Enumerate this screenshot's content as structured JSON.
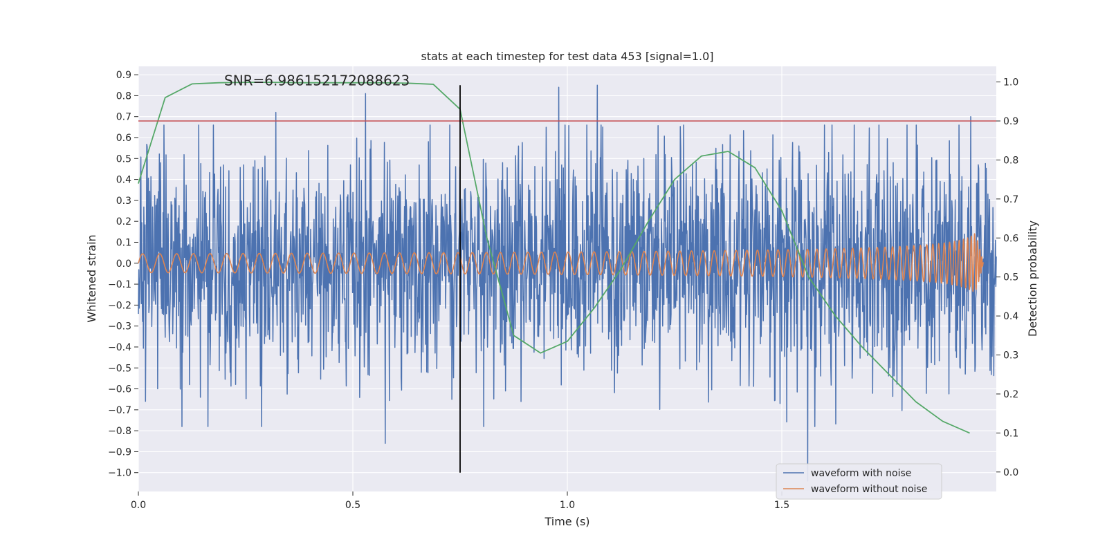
{
  "colors": {
    "background": "#ffffff",
    "axes_face": "#eaeaf2",
    "grid": "#ffffff",
    "noisy": "#4c72b0",
    "clean": "#dd8452",
    "probability": "#55a868",
    "threshold": "#c44e52",
    "marker": "#000000",
    "text": "#262626"
  },
  "chart_data": {
    "type": "line",
    "title": "stats at each timestep for test data 453 [signal=1.0]",
    "xlabel": "Time (s)",
    "ylabel": "Whitened strain",
    "y2label": "Detection probability",
    "xlim": [
      0.0,
      2.0
    ],
    "ylim": [
      -1.09,
      0.94
    ],
    "y2lim": [
      -0.05,
      1.04
    ],
    "xticks": [
      0.0,
      0.5,
      1.0,
      1.5
    ],
    "xtick_labels": [
      "0.0",
      "0.5",
      "1.0",
      "1.5"
    ],
    "yticks": [
      -1.0,
      -0.9,
      -0.8,
      -0.7,
      -0.6,
      -0.5,
      -0.4,
      -0.3,
      -0.2,
      -0.1,
      0.0,
      0.1,
      0.2,
      0.3,
      0.4,
      0.5,
      0.6,
      0.7,
      0.8,
      0.9
    ],
    "ytick_labels": [
      "−1.0",
      "−0.9",
      "−0.8",
      "−0.7",
      "−0.6",
      "−0.5",
      "−0.4",
      "−0.3",
      "−0.2",
      "−0.1",
      "0.0",
      "0.1",
      "0.2",
      "0.3",
      "0.4",
      "0.5",
      "0.6",
      "0.7",
      "0.8",
      "0.9"
    ],
    "y2ticks": [
      0.0,
      0.1,
      0.2,
      0.3,
      0.4,
      0.5,
      0.6,
      0.7,
      0.8,
      0.9,
      1.0
    ],
    "y2tick_labels": [
      "0.0",
      "0.1",
      "0.2",
      "0.3",
      "0.4",
      "0.5",
      "0.6",
      "0.7",
      "0.8",
      "0.9",
      "1.0"
    ],
    "grid": true,
    "annotation": "SNR=6.986152172088623",
    "annotation_at": [
      0.2,
      0.85
    ],
    "threshold": {
      "axis": "right",
      "value": 0.9
    },
    "marker_line": {
      "x": 0.75,
      "y_range": [
        -1.0,
        0.85
      ]
    },
    "legend": {
      "placement": "lower right",
      "entries": [
        "waveform with noise",
        "waveform without noise"
      ]
    },
    "series": [
      {
        "name": "waveform with noise",
        "kind": "noise",
        "axis": "left",
        "x_range": [
          0.0,
          2.0
        ],
        "amplitude_sigma": 0.27,
        "visible_extremes": [
          {
            "x": 0.32,
            "y": 0.72
          },
          {
            "x": 0.53,
            "y": 0.81
          },
          {
            "x": 0.575,
            "y": -0.86
          },
          {
            "x": 0.98,
            "y": 0.84
          },
          {
            "x": 1.07,
            "y": 0.85
          },
          {
            "x": 1.56,
            "y": -1.04
          },
          {
            "x": 1.54,
            "y": 0.56
          },
          {
            "x": 1.94,
            "y": 0.7
          },
          {
            "x": 0.045,
            "y": -0.6
          }
        ]
      },
      {
        "name": "waveform without noise",
        "kind": "chirp",
        "axis": "left",
        "x_range": [
          0.0,
          1.97
        ],
        "merger_time": 1.97,
        "base_frequency_hz": 25,
        "base_amplitude": 0.045,
        "peak_amplitude": 0.16
      },
      {
        "name": "Detection probability",
        "axis": "right",
        "x": [
          0.0,
          0.0625,
          0.125,
          0.1875,
          0.25,
          0.3125,
          0.375,
          0.4375,
          0.5,
          0.5625,
          0.625,
          0.6875,
          0.75,
          0.8125,
          0.875,
          0.9375,
          1.0,
          1.0625,
          1.125,
          1.1875,
          1.25,
          1.3125,
          1.375,
          1.4375,
          1.5,
          1.5625,
          1.625,
          1.6875,
          1.75,
          1.8125,
          1.875,
          1.9375
        ],
        "values": [
          0.74,
          0.96,
          0.995,
          0.998,
          0.999,
          0.999,
          0.998,
          0.998,
          0.998,
          0.998,
          0.997,
          0.994,
          0.93,
          0.6,
          0.35,
          0.305,
          0.335,
          0.42,
          0.52,
          0.64,
          0.75,
          0.81,
          0.822,
          0.78,
          0.67,
          0.5,
          0.4,
          0.32,
          0.25,
          0.18,
          0.13,
          0.1
        ]
      }
    ]
  }
}
